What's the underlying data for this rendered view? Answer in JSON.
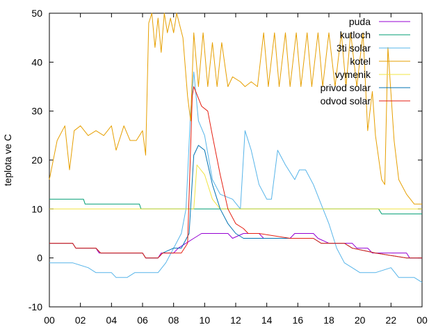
{
  "chart_data": {
    "type": "line",
    "title": "",
    "xlabel": "",
    "ylabel": "teplota ve C",
    "xlim": [
      0,
      24
    ],
    "ylim": [
      -10,
      50
    ],
    "x_ticks": [
      "00",
      "02",
      "04",
      "06",
      "08",
      "10",
      "12",
      "14",
      "16",
      "18",
      "20",
      "22",
      "00"
    ],
    "y_ticks": [
      -10,
      0,
      10,
      20,
      30,
      40,
      50
    ],
    "legend_position": "top-right",
    "series": [
      {
        "name": "puda",
        "color": "#9400d3",
        "points": [
          [
            0,
            3
          ],
          [
            1.5,
            3
          ],
          [
            1.7,
            2
          ],
          [
            3,
            2
          ],
          [
            3.2,
            1
          ],
          [
            6,
            1
          ],
          [
            6.2,
            0
          ],
          [
            7,
            0
          ],
          [
            7.2,
            1
          ],
          [
            8,
            1
          ],
          [
            8.3,
            2
          ],
          [
            8.8,
            3
          ],
          [
            9.3,
            4
          ],
          [
            9.8,
            5
          ],
          [
            11.5,
            5
          ],
          [
            11.8,
            4
          ],
          [
            12.5,
            5
          ],
          [
            13.5,
            5
          ],
          [
            13.8,
            4
          ],
          [
            15.5,
            4
          ],
          [
            15.8,
            5
          ],
          [
            17,
            5
          ],
          [
            17.3,
            4
          ],
          [
            18,
            3
          ],
          [
            19.5,
            3
          ],
          [
            19.8,
            2
          ],
          [
            20.5,
            2
          ],
          [
            20.8,
            1
          ],
          [
            23,
            1
          ],
          [
            23.2,
            0
          ],
          [
            24,
            0
          ]
        ]
      },
      {
        "name": "kutloch",
        "color": "#009e73",
        "points": [
          [
            0,
            12
          ],
          [
            2.2,
            12
          ],
          [
            2.3,
            11
          ],
          [
            5.8,
            11
          ],
          [
            5.9,
            10
          ],
          [
            21.2,
            10
          ],
          [
            21.4,
            9
          ],
          [
            24,
            9
          ]
        ]
      },
      {
        "name": "3ti solar",
        "color": "#56b4e9",
        "points": [
          [
            0,
            -1
          ],
          [
            1.5,
            -1
          ],
          [
            2.5,
            -2
          ],
          [
            3,
            -3
          ],
          [
            4,
            -3
          ],
          [
            4.3,
            -4
          ],
          [
            5,
            -4
          ],
          [
            5.5,
            -3
          ],
          [
            7,
            -3
          ],
          [
            7.5,
            -1
          ],
          [
            8,
            2
          ],
          [
            8.5,
            5
          ],
          [
            8.8,
            10
          ],
          [
            9.1,
            30
          ],
          [
            9.3,
            38
          ],
          [
            9.6,
            28
          ],
          [
            10,
            25
          ],
          [
            10.5,
            16
          ],
          [
            11,
            13
          ],
          [
            11.8,
            12
          ],
          [
            12.3,
            10
          ],
          [
            12.6,
            26
          ],
          [
            13,
            22
          ],
          [
            13.5,
            15
          ],
          [
            14,
            12
          ],
          [
            14.3,
            12
          ],
          [
            14.7,
            22
          ],
          [
            15.2,
            19
          ],
          [
            15.8,
            16
          ],
          [
            16.1,
            18
          ],
          [
            16.5,
            18
          ],
          [
            17,
            15
          ],
          [
            17.5,
            11
          ],
          [
            18,
            7
          ],
          [
            18.5,
            2
          ],
          [
            19,
            -1
          ],
          [
            19.5,
            -2
          ],
          [
            20,
            -3
          ],
          [
            21,
            -3
          ],
          [
            22,
            -2
          ],
          [
            22.5,
            -4
          ],
          [
            23.5,
            -4
          ],
          [
            24,
            -5
          ]
        ]
      },
      {
        "name": "kotel",
        "color": "#e69f00",
        "points": [
          [
            0,
            16
          ],
          [
            0.5,
            24
          ],
          [
            1,
            27
          ],
          [
            1.3,
            18
          ],
          [
            1.6,
            26
          ],
          [
            2,
            27
          ],
          [
            2.5,
            25
          ],
          [
            3,
            26
          ],
          [
            3.5,
            25
          ],
          [
            4,
            27
          ],
          [
            4.3,
            22
          ],
          [
            4.8,
            27
          ],
          [
            5.2,
            24
          ],
          [
            5.6,
            24
          ],
          [
            6,
            26
          ],
          [
            6.2,
            21
          ],
          [
            6.4,
            48
          ],
          [
            6.6,
            50
          ],
          [
            6.8,
            43
          ],
          [
            7,
            49
          ],
          [
            7.2,
            42
          ],
          [
            7.4,
            50
          ],
          [
            7.6,
            46
          ],
          [
            7.8,
            49
          ],
          [
            8,
            46
          ],
          [
            8.2,
            50
          ],
          [
            8.6,
            45
          ],
          [
            8.9,
            33
          ],
          [
            9.1,
            28
          ],
          [
            9.3,
            46
          ],
          [
            9.6,
            35
          ],
          [
            9.9,
            46
          ],
          [
            10.2,
            35
          ],
          [
            10.5,
            44
          ],
          [
            10.8,
            35
          ],
          [
            11.1,
            44
          ],
          [
            11.5,
            35
          ],
          [
            11.8,
            37
          ],
          [
            12.3,
            36
          ],
          [
            12.6,
            35
          ],
          [
            13,
            36
          ],
          [
            13.4,
            35
          ],
          [
            13.8,
            46
          ],
          [
            14.1,
            35
          ],
          [
            14.5,
            46
          ],
          [
            14.8,
            35
          ],
          [
            15.2,
            46
          ],
          [
            15.5,
            35
          ],
          [
            15.9,
            46
          ],
          [
            16.2,
            35
          ],
          [
            16.6,
            46
          ],
          [
            16.9,
            35
          ],
          [
            17.3,
            46
          ],
          [
            17.6,
            35
          ],
          [
            18,
            46
          ],
          [
            18.4,
            35
          ],
          [
            18.8,
            46
          ],
          [
            19.1,
            35
          ],
          [
            19.4,
            46
          ],
          [
            19.8,
            35
          ],
          [
            20.2,
            46
          ],
          [
            20.5,
            26
          ],
          [
            20.8,
            34
          ],
          [
            21,
            25
          ],
          [
            21.4,
            16
          ],
          [
            21.6,
            15
          ],
          [
            21.8,
            43
          ],
          [
            22.2,
            24
          ],
          [
            22.5,
            16
          ],
          [
            23,
            13
          ],
          [
            23.5,
            11
          ],
          [
            24,
            11
          ]
        ]
      },
      {
        "name": "vymenik",
        "color": "#f0e442",
        "points": [
          [
            0,
            10
          ],
          [
            9.3,
            10
          ],
          [
            9.5,
            19
          ],
          [
            10,
            17
          ],
          [
            10.5,
            12
          ],
          [
            11,
            10
          ],
          [
            21,
            10
          ],
          [
            22.5,
            10
          ],
          [
            24,
            10
          ]
        ]
      },
      {
        "name": "privod solar",
        "color": "#0072b2",
        "points": [
          [
            0,
            3
          ],
          [
            1.5,
            3
          ],
          [
            1.7,
            2
          ],
          [
            3,
            2
          ],
          [
            3.3,
            1
          ],
          [
            6,
            1
          ],
          [
            6.2,
            0
          ],
          [
            7,
            0
          ],
          [
            7.3,
            1
          ],
          [
            8,
            2
          ],
          [
            8.5,
            2
          ],
          [
            9,
            5
          ],
          [
            9.3,
            21
          ],
          [
            9.6,
            23
          ],
          [
            10,
            22
          ],
          [
            10.5,
            15
          ],
          [
            11,
            10
          ],
          [
            11.5,
            7
          ],
          [
            12,
            5
          ],
          [
            12.5,
            4
          ],
          [
            13.5,
            4
          ],
          [
            15.5,
            4
          ],
          [
            17,
            4
          ],
          [
            17.5,
            3
          ],
          [
            19,
            3
          ],
          [
            19.5,
            2
          ],
          [
            21,
            1
          ],
          [
            23,
            0
          ],
          [
            24,
            0
          ]
        ]
      },
      {
        "name": "odvod solar",
        "color": "#e51e10",
        "points": [
          [
            0,
            3
          ],
          [
            1.5,
            3
          ],
          [
            1.7,
            2
          ],
          [
            3,
            2
          ],
          [
            3.3,
            1
          ],
          [
            6,
            1
          ],
          [
            6.2,
            0
          ],
          [
            7,
            0
          ],
          [
            7.3,
            1
          ],
          [
            8.5,
            1
          ],
          [
            8.9,
            3
          ],
          [
            9.2,
            33
          ],
          [
            9.3,
            35
          ],
          [
            9.8,
            31
          ],
          [
            10.2,
            30
          ],
          [
            10.5,
            25
          ],
          [
            11,
            17
          ],
          [
            11.5,
            10
          ],
          [
            12,
            7
          ],
          [
            12.5,
            6
          ],
          [
            12.8,
            5
          ],
          [
            13.5,
            5
          ],
          [
            15.5,
            4
          ],
          [
            17,
            4
          ],
          [
            17.5,
            3
          ],
          [
            19,
            3
          ],
          [
            19.5,
            2
          ],
          [
            21,
            1
          ],
          [
            23,
            0
          ],
          [
            24,
            0
          ]
        ]
      }
    ]
  }
}
